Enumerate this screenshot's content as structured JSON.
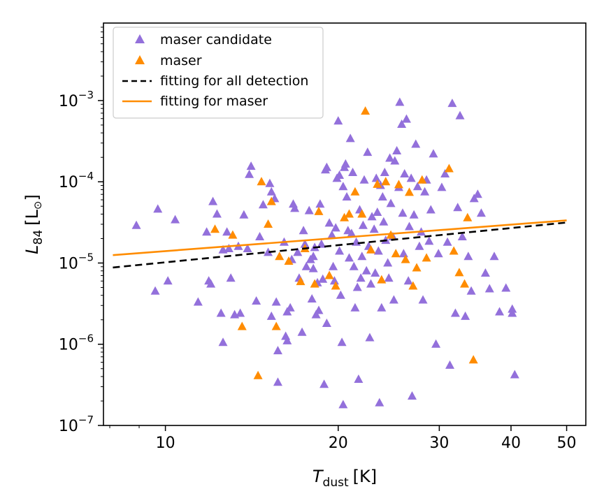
{
  "chart_data": {
    "type": "scatter",
    "xlabel": "T",
    "xlabel_sub": "dust",
    "xlabel_unit": "[K]",
    "ylabel": "L",
    "ylabel_sub": "84",
    "ylabel_unit_open": "[L",
    "ylabel_unit_symbol": "⊙",
    "ylabel_unit_close": "]",
    "xscale": "log",
    "yscale": "log",
    "xlim": [
      7.8,
      54
    ],
    "ylim": [
      1e-07,
      0.009
    ],
    "x_ticks": [
      {
        "value": 10,
        "label": "10"
      },
      {
        "value": 20,
        "label": "20"
      },
      {
        "value": 30,
        "label": "30"
      },
      {
        "value": 40,
        "label": "40"
      },
      {
        "value": 50,
        "label": "50"
      }
    ],
    "y_ticks": [
      {
        "value": 1e-07,
        "base": "10",
        "exp": "−7"
      },
      {
        "value": 1e-06,
        "base": "10",
        "exp": "−6"
      },
      {
        "value": 1e-05,
        "base": "10",
        "exp": "−5"
      },
      {
        "value": 0.0001,
        "base": "10",
        "exp": "−4"
      },
      {
        "value": 0.001,
        "base": "10",
        "exp": "−3"
      }
    ],
    "legend": {
      "position": "top-left",
      "entries": [
        {
          "label": "maser candidate",
          "marker": "triangle",
          "color": "#9370DB"
        },
        {
          "label": "maser",
          "marker": "triangle",
          "color": "#FF8C00"
        },
        {
          "label": "fitting for all detection",
          "line": "dashed",
          "color": "#000000"
        },
        {
          "label": "fitting for maser",
          "line": "solid",
          "color": "#FF8C00"
        }
      ]
    },
    "series": [
      {
        "name": "maser candidate",
        "color": "#9370DB",
        "points": [
          [
            8.9,
            2.9e-05
          ],
          [
            9.6,
            4.5e-06
          ],
          [
            9.7,
            4.6e-05
          ],
          [
            10.1,
            6e-06
          ],
          [
            10.4,
            3.4e-05
          ],
          [
            11.4,
            3.3e-06
          ],
          [
            11.8,
            2.4e-05
          ],
          [
            11.9,
            6e-06
          ],
          [
            12,
            5.5e-06
          ],
          [
            12.1,
            5.7e-05
          ],
          [
            12.3,
            4e-05
          ],
          [
            12.5,
            2.4e-06
          ],
          [
            12.6,
            1.05e-06
          ],
          [
            12.6,
            1.45e-05
          ],
          [
            12.8,
            2.4e-05
          ],
          [
            12.9,
            1.5e-05
          ],
          [
            13,
            6.5e-06
          ],
          [
            13.2,
            2.3e-06
          ],
          [
            13.4,
            1.6e-05
          ],
          [
            13.5,
            2.4e-06
          ],
          [
            13.7,
            3.9e-05
          ],
          [
            13.9,
            1.5e-05
          ],
          [
            14,
            0.000123
          ],
          [
            14.1,
            0.000155
          ],
          [
            14.4,
            3.4e-06
          ],
          [
            14.6,
            2.1e-05
          ],
          [
            14.8,
            5.2e-05
          ],
          [
            15.1,
            1.35e-05
          ],
          [
            15.2,
            9.5e-05
          ],
          [
            15.3,
            7.5e-05
          ],
          [
            15.3,
            2.2e-06
          ],
          [
            15.5,
            6.2e-05
          ],
          [
            15.6,
            3.3e-06
          ],
          [
            15.7,
            8.3e-07
          ],
          [
            15.7,
            3.4e-07
          ],
          [
            16.1,
            1.8e-05
          ],
          [
            16.2,
            1.25e-06
          ],
          [
            16.3,
            2.5e-06
          ],
          [
            16.3,
            1.1e-06
          ],
          [
            16.5,
            2.8e-06
          ],
          [
            16.6,
            1.1e-05
          ],
          [
            16.7,
            5.3e-05
          ],
          [
            16.8,
            4.7e-05
          ],
          [
            17,
            1.35e-05
          ],
          [
            17.1,
            6.5e-06
          ],
          [
            17.3,
            1.4e-06
          ],
          [
            17.4,
            2.5e-05
          ],
          [
            17.5,
            1.7e-05
          ],
          [
            17.6,
            9e-06
          ],
          [
            17.8,
            4.4e-05
          ],
          [
            17.9,
            1.1e-05
          ],
          [
            18,
            3.6e-06
          ],
          [
            18.1,
            1.2e-05
          ],
          [
            18.1,
            8.5e-06
          ],
          [
            18.2,
            1.55e-05
          ],
          [
            18.3,
            2.3e-06
          ],
          [
            18.4,
            5.7e-06
          ],
          [
            18.5,
            2.6e-06
          ],
          [
            18.6,
            5.3e-05
          ],
          [
            18.7,
            1.7e-05
          ],
          [
            18.8,
            6.3e-06
          ],
          [
            18.9,
            3.2e-07
          ],
          [
            19,
            0.00014
          ],
          [
            19.1,
            0.00015
          ],
          [
            19.1,
            1.8e-06
          ],
          [
            19.3,
            3.1e-05
          ],
          [
            19.5,
            2.2e-05
          ],
          [
            19.6,
            9e-06
          ],
          [
            19.7,
            6e-06
          ],
          [
            19.8,
            2.7e-05
          ],
          [
            19.9,
            0.00011
          ],
          [
            20,
            0.00056
          ],
          [
            20.1,
            0.00012
          ],
          [
            20.1,
            1.4e-05
          ],
          [
            20.2,
            4e-06
          ],
          [
            20.3,
            1.05e-06
          ],
          [
            20.4,
            1.8e-07
          ],
          [
            20.4,
            8.7e-05
          ],
          [
            20.5,
            0.00015
          ],
          [
            20.6,
            0.000165
          ],
          [
            20.7,
            6.5e-05
          ],
          [
            20.8,
            2.5e-05
          ],
          [
            20.9,
            1.15e-05
          ],
          [
            21,
            0.00034
          ],
          [
            21.1,
            2.3e-05
          ],
          [
            21.2,
            0.00013
          ],
          [
            21.3,
            9e-06
          ],
          [
            21.4,
            2.8e-06
          ],
          [
            21.5,
            1.8e-05
          ],
          [
            21.6,
            5e-06
          ],
          [
            21.7,
            3.7e-07
          ],
          [
            21.8,
            4.5e-05
          ],
          [
            21.9,
            6.5e-06
          ],
          [
            22,
            1.2e-05
          ],
          [
            22.1,
            2.9e-05
          ],
          [
            22.2,
            0.000105
          ],
          [
            22.4,
            8e-06
          ],
          [
            22.5,
            0.00023
          ],
          [
            22.6,
            1.6e-05
          ],
          [
            22.7,
            1.2e-06
          ],
          [
            22.8,
            5.5e-06
          ],
          [
            22.9,
            3.7e-05
          ],
          [
            23.1,
            2.6e-05
          ],
          [
            23.2,
            7.5e-06
          ],
          [
            23.3,
            0.00011
          ],
          [
            23.4,
            4.2e-05
          ],
          [
            23.5,
            1.4e-05
          ],
          [
            23.6,
            1.9e-07
          ],
          [
            23.7,
            9e-05
          ],
          [
            23.8,
            2.8e-06
          ],
          [
            23.9,
            6.5e-05
          ],
          [
            24,
            3.2e-05
          ],
          [
            24.1,
            0.00013
          ],
          [
            24.2,
            1.9e-05
          ],
          [
            24.4,
            1e-05
          ],
          [
            24.5,
            6.5e-06
          ],
          [
            24.6,
            0.000195
          ],
          [
            24.7,
            5.4e-05
          ],
          [
            24.9,
            2.1e-05
          ],
          [
            25,
            3.5e-06
          ],
          [
            25.1,
            0.00018
          ],
          [
            25.3,
            0.00024
          ],
          [
            25.5,
            8.5e-05
          ],
          [
            25.6,
            0.00095
          ],
          [
            25.8,
            0.00051
          ],
          [
            25.9,
            4.1e-05
          ],
          [
            26,
            1.3e-05
          ],
          [
            26.1,
            0.000125
          ],
          [
            26.3,
            0.00059
          ],
          [
            26.5,
            6e-06
          ],
          [
            26.6,
            2.8e-05
          ],
          [
            26.8,
            0.00011
          ],
          [
            26.9,
            2.3e-07
          ],
          [
            27.1,
            3.9e-05
          ],
          [
            27.3,
            0.00029
          ],
          [
            27.5,
            8.7e-05
          ],
          [
            27.7,
            1.6e-05
          ],
          [
            27.9,
            2.4e-05
          ],
          [
            28.1,
            3.5e-06
          ],
          [
            28.3,
            7.5e-05
          ],
          [
            28.5,
            0.000105
          ],
          [
            28.8,
            1.85e-05
          ],
          [
            29,
            4.5e-05
          ],
          [
            29.3,
            0.00022
          ],
          [
            29.6,
            1e-06
          ],
          [
            29.9,
            1.3e-05
          ],
          [
            30.3,
            8.5e-05
          ],
          [
            30.7,
            0.000125
          ],
          [
            31,
            1.8e-05
          ],
          [
            31.3,
            5.5e-07
          ],
          [
            31.6,
            0.00092
          ],
          [
            32,
            2.4e-06
          ],
          [
            32.3,
            4.8e-05
          ],
          [
            32.6,
            0.00065
          ],
          [
            32.9,
            2.1e-05
          ],
          [
            33.3,
            2.2e-06
          ],
          [
            33.7,
            1.2e-05
          ],
          [
            34.1,
            4.5e-06
          ],
          [
            34.5,
            6.2e-05
          ],
          [
            35,
            7e-05
          ],
          [
            35.5,
            4.1e-05
          ],
          [
            36.1,
            7.5e-06
          ],
          [
            36.7,
            4.8e-06
          ],
          [
            37.4,
            1.2e-05
          ],
          [
            38.2,
            2.5e-06
          ],
          [
            39.2,
            4.9e-06
          ],
          [
            40.2,
            2.7e-06
          ],
          [
            40.6,
            4.2e-07
          ],
          [
            40.2,
            2.4e-06
          ]
        ]
      },
      {
        "name": "maser",
        "color": "#FF8C00",
        "points": [
          [
            12.2,
            2.6e-05
          ],
          [
            13.1,
            2.2e-05
          ],
          [
            13.6,
            1.65e-06
          ],
          [
            14.5,
            4.1e-07
          ],
          [
            14.7,
            0.0001
          ],
          [
            15.1,
            3e-05
          ],
          [
            15.3,
            5.7e-05
          ],
          [
            15.6,
            1.65e-06
          ],
          [
            15.8,
            1.2e-05
          ],
          [
            16.4,
            1.05e-05
          ],
          [
            17.2,
            5.9e-06
          ],
          [
            17.5,
            1.5e-05
          ],
          [
            18.2,
            5.5e-06
          ],
          [
            18.5,
            4.3e-05
          ],
          [
            19.3,
            7e-06
          ],
          [
            19.8,
            5.2e-06
          ],
          [
            20.5,
            3.6e-05
          ],
          [
            20.9,
            4e-05
          ],
          [
            21.4,
            7.5e-05
          ],
          [
            22,
            4e-05
          ],
          [
            22.3,
            0.00074
          ],
          [
            22.8,
            1.45e-05
          ],
          [
            23.4,
            9.3e-05
          ],
          [
            23.8,
            6.2e-06
          ],
          [
            24.2,
            0.0001
          ],
          [
            24.7,
            2.2e-05
          ],
          [
            25.2,
            1.3e-05
          ],
          [
            25.5,
            9.2e-05
          ],
          [
            26.2,
            1.1e-05
          ],
          [
            26.6,
            7.4e-05
          ],
          [
            27,
            5.2e-06
          ],
          [
            27.4,
            8.7e-06
          ],
          [
            28,
            0.000105
          ],
          [
            28.5,
            1.15e-05
          ],
          [
            31.2,
            0.000145
          ],
          [
            31.8,
            1.4e-05
          ],
          [
            32.5,
            7.6e-06
          ],
          [
            33.2,
            5.5e-06
          ],
          [
            33.6,
            3.6e-05
          ],
          [
            34.4,
            6.4e-07
          ]
        ]
      }
    ],
    "fits": [
      {
        "name": "fitting for all detection",
        "x": [
          8.1,
          50
        ],
        "y": [
          8.8e-06,
          3.15e-05
        ]
      },
      {
        "name": "fitting for maser",
        "x": [
          8.1,
          50
        ],
        "y": [
          1.25e-05,
          3.35e-05
        ]
      }
    ]
  }
}
